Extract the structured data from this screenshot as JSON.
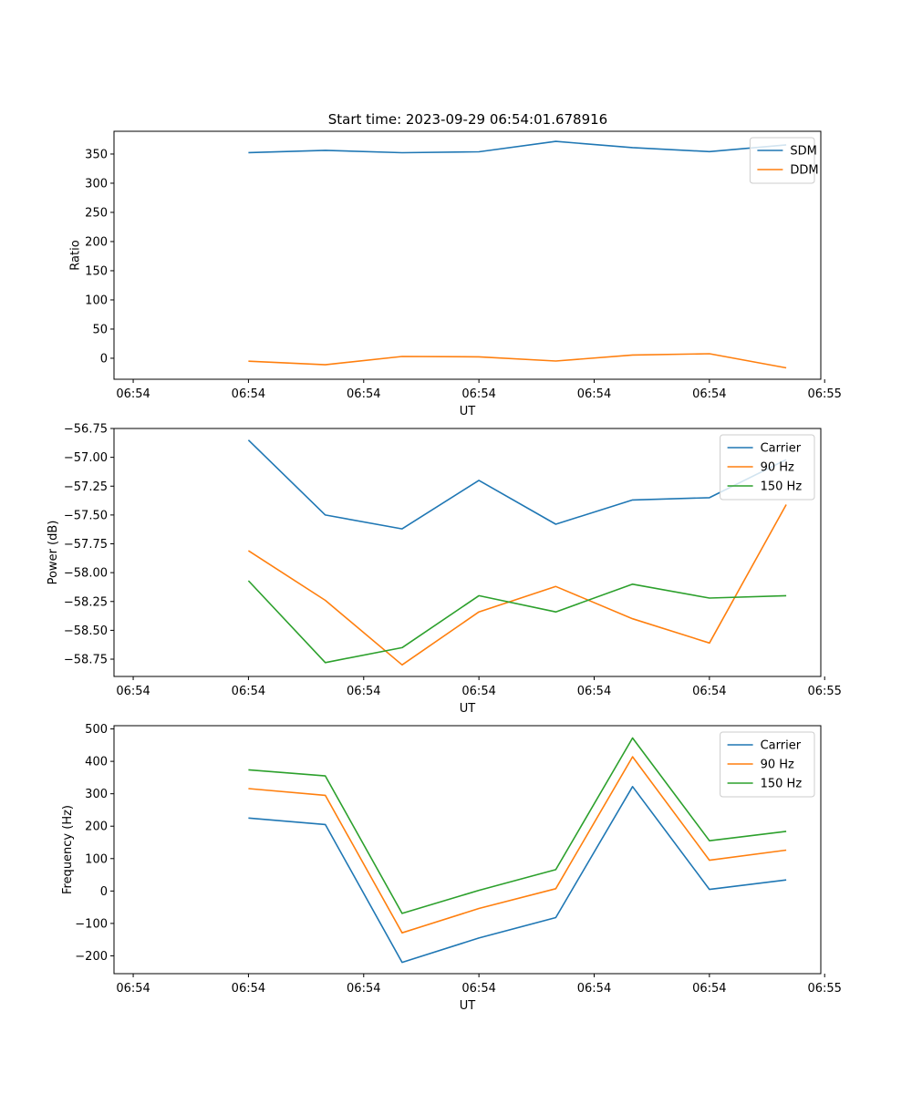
{
  "figure_title": "Start time: 2023-09-29 06:54:01.678916",
  "colors": {
    "blue": "#1f77b4",
    "orange": "#ff7f0e",
    "green": "#2ca02c"
  },
  "chart_data": [
    {
      "type": "line",
      "title": "Start time: 2023-09-29 06:54:01.678916",
      "xlabel": "UT",
      "ylabel": "Ratio",
      "x": [
        1,
        2,
        3,
        4,
        5,
        6,
        7,
        8
      ],
      "xlim": [
        -0.75,
        8.45
      ],
      "x_ticks": [
        -0.5,
        1.0,
        2.5,
        4.0,
        5.5,
        7.0,
        8.5
      ],
      "x_tick_labels": [
        "06:54",
        "06:54",
        "06:54",
        "06:54",
        "06:54",
        "06:54",
        "06:55"
      ],
      "ylim": [
        -36,
        389
      ],
      "y_ticks": [
        0,
        50,
        100,
        150,
        200,
        250,
        300,
        350
      ],
      "y_tick_labels": [
        "0",
        "50",
        "100",
        "150",
        "200",
        "250",
        "300",
        "350"
      ],
      "legend": "upper right",
      "series": [
        {
          "name": "SDM",
          "color": "#1f77b4",
          "values": [
            352.5,
            356.3,
            352.3,
            353.8,
            371.6,
            361.0,
            354.1,
            365.7
          ]
        },
        {
          "name": "DDM",
          "color": "#ff7f0e",
          "values": [
            -5.0,
            -11.2,
            3.0,
            2.4,
            -4.7,
            5.5,
            7.8,
            -16.4
          ]
        }
      ]
    },
    {
      "type": "line",
      "title": "",
      "xlabel": "UT",
      "ylabel": "Power (dB)",
      "x": [
        1,
        2,
        3,
        4,
        5,
        6,
        7,
        8
      ],
      "xlim": [
        -0.75,
        8.45
      ],
      "x_ticks": [
        -0.5,
        1.0,
        2.5,
        4.0,
        5.5,
        7.0,
        8.5
      ],
      "x_tick_labels": [
        "06:54",
        "06:54",
        "06:54",
        "06:54",
        "06:54",
        "06:54",
        "06:55"
      ],
      "ylim": [
        -58.9,
        -56.75
      ],
      "y_ticks": [
        -56.75,
        -57.0,
        -57.25,
        -57.5,
        -57.75,
        -58.0,
        -58.25,
        -58.5,
        -58.75
      ],
      "y_tick_labels": [
        "−56.75",
        "−57.00",
        "−57.25",
        "−57.50",
        "−57.75",
        "−58.00",
        "−58.25",
        "−58.50",
        "−58.75"
      ],
      "legend": "upper right",
      "series": [
        {
          "name": "Carrier",
          "color": "#1f77b4",
          "values": [
            -56.85,
            -57.5,
            -57.62,
            -57.2,
            -57.58,
            -57.37,
            -57.35,
            -57.02
          ]
        },
        {
          "name": "90 Hz",
          "color": "#ff7f0e",
          "values": [
            -57.81,
            -58.24,
            -58.8,
            -58.34,
            -58.12,
            -58.4,
            -58.61,
            -57.41
          ]
        },
        {
          "name": "150 Hz",
          "color": "#2ca02c",
          "values": [
            -58.07,
            -58.78,
            -58.65,
            -58.2,
            -58.34,
            -58.1,
            -58.22,
            -58.2
          ]
        }
      ]
    },
    {
      "type": "line",
      "title": "",
      "xlabel": "UT",
      "ylabel": "Frequency (Hz)",
      "x": [
        1,
        2,
        3,
        4,
        5,
        6,
        7,
        8
      ],
      "xlim": [
        -0.75,
        8.45
      ],
      "x_ticks": [
        -0.5,
        1.0,
        2.5,
        4.0,
        5.5,
        7.0,
        8.5
      ],
      "x_tick_labels": [
        "06:54",
        "06:54",
        "06:54",
        "06:54",
        "06:54",
        "06:54",
        "06:55"
      ],
      "ylim": [
        -255,
        510
      ],
      "y_ticks": [
        -200,
        -100,
        0,
        100,
        200,
        300,
        400,
        500
      ],
      "y_tick_labels": [
        "−200",
        "−100",
        "0",
        "100",
        "200",
        "300",
        "400",
        "500"
      ],
      "legend": "upper right",
      "series": [
        {
          "name": "Carrier",
          "color": "#1f77b4",
          "values": [
            225,
            205,
            -220,
            -145,
            -82,
            322,
            5,
            34
          ]
        },
        {
          "name": "90 Hz",
          "color": "#ff7f0e",
          "values": [
            316,
            295,
            -129,
            -54,
            7,
            414,
            95,
            126
          ]
        },
        {
          "name": "150 Hz",
          "color": "#2ca02c",
          "values": [
            374,
            355,
            -69,
            2,
            66,
            472,
            155,
            184
          ]
        }
      ]
    }
  ]
}
